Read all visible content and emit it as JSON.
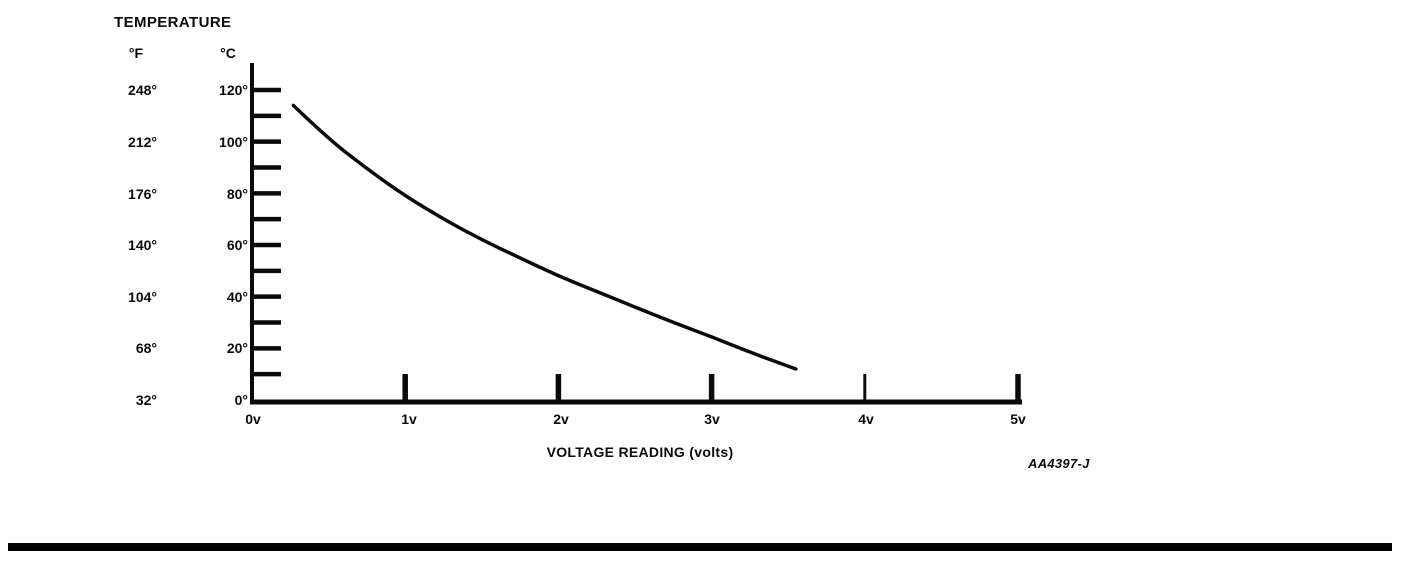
{
  "page": {
    "background_color": "#ffffff",
    "ink_color": "#0a0a0a"
  },
  "header": {
    "title": "TEMPERATURE"
  },
  "y_axis": {
    "unit_headers": {
      "fahrenheit": "°F",
      "celsius": "°C"
    },
    "rows": [
      {
        "f": "248°",
        "c": "120°"
      },
      {
        "f": "212°",
        "c": "100°"
      },
      {
        "f": "176°",
        "c": "80°"
      },
      {
        "f": "140°",
        "c": "60°"
      },
      {
        "f": "104°",
        "c": "40°"
      },
      {
        "f": "68°",
        "c": "20°"
      },
      {
        "f": "32°",
        "c": "0°"
      }
    ]
  },
  "x_axis": {
    "labels": [
      "0v",
      "1v",
      "2v",
      "3v",
      "4v",
      "5v"
    ],
    "title": "VOLTAGE READING (volts)"
  },
  "figure_code": "AA4397-J",
  "chart_data": {
    "type": "line",
    "title": "TEMPERATURE",
    "xlabel": "VOLTAGE READING (volts)",
    "ylabel": "TEMPERATURE (°F / °C)",
    "xlim": [
      0,
      5
    ],
    "x_ticks_volts": [
      0,
      1,
      2,
      3,
      4,
      5
    ],
    "ylim_celsius": [
      0,
      120
    ],
    "ylim_fahrenheit": [
      32,
      248
    ],
    "y_major_ticks_celsius": [
      0,
      20,
      40,
      60,
      80,
      100,
      120
    ],
    "y_major_ticks_fahrenheit": [
      32,
      68,
      104,
      140,
      176,
      212,
      248
    ],
    "y_minor_tick_step_celsius": 10,
    "grid": false,
    "legend_position": "none",
    "series": [
      {
        "name": "temperature-vs-voltage-curve",
        "x_volts": [
          0.27,
          0.5,
          0.75,
          1.0,
          1.25,
          1.5,
          1.75,
          2.0,
          2.25,
          2.5,
          2.75,
          3.0,
          3.25,
          3.55
        ],
        "y_celsius": [
          114,
          101,
          89.5,
          79,
          70,
          62,
          55,
          48,
          42,
          36,
          30,
          24.5,
          18.5,
          12
        ],
        "y_fahrenheit": [
          237,
          214,
          193,
          174,
          158,
          144,
          131,
          118,
          108,
          97,
          86,
          76,
          65,
          54
        ]
      }
    ]
  }
}
